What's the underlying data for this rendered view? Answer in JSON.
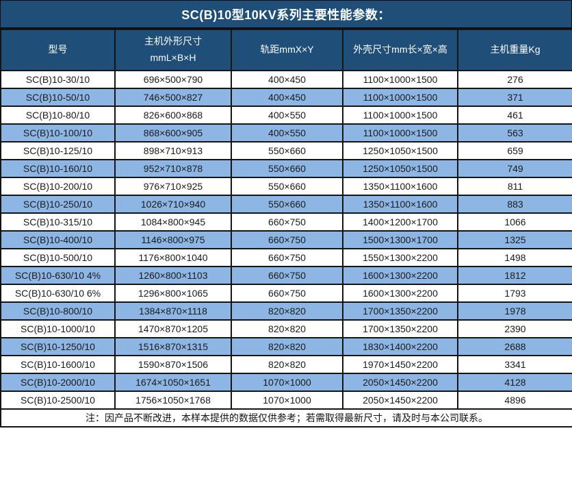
{
  "title": "SC(B)10型10KV系列主要性能参数：",
  "colors": {
    "header_bg": "#1F4E79",
    "stripe_bg": "#8EB6E4",
    "grid_line": "#141414",
    "header_text": "#ffffff",
    "body_text": "#1a1a1a"
  },
  "table": {
    "columns": [
      {
        "label": "型号"
      },
      {
        "label": "主机外形尺寸\nmmL×B×H"
      },
      {
        "label": "轨距mmX×Y"
      },
      {
        "label": "外壳尺寸mm长×宽×高"
      },
      {
        "label": "主机重量Kg"
      }
    ],
    "rows": [
      [
        "SC(B)10-30/10",
        "696×500×790",
        "400×450",
        "1100×1000×1500",
        "276"
      ],
      [
        "SC(B)10-50/10",
        "746×500×827",
        "400×450",
        "1100×1000×1500",
        "371"
      ],
      [
        "SC(B)10-80/10",
        "826×600×868",
        "400×550",
        "1100×1000×1500",
        "461"
      ],
      [
        "SC(B)10-100/10",
        "868×600×905",
        "400×550",
        "1100×1000×1500",
        "563"
      ],
      [
        "SC(B)10-125/10",
        "898×710×913",
        "550×660",
        "1250×1050×1500",
        "659"
      ],
      [
        "SC(B)10-160/10",
        "952×710×878",
        "550×660",
        "1250×1050×1500",
        "749"
      ],
      [
        "SC(B)10-200/10",
        "976×710×925",
        "550×660",
        "1350×1100×1600",
        "811"
      ],
      [
        "SC(B)10-250/10",
        "1026×710×940",
        "550×660",
        "1350×1100×1600",
        "883"
      ],
      [
        "SC(B)10-315/10",
        "1084×800×945",
        "660×750",
        "1400×1200×1700",
        "1066"
      ],
      [
        "SC(B)10-400/10",
        "1146×800×975",
        "660×750",
        "1500×1300×1700",
        "1325"
      ],
      [
        "SC(B)10-500/10",
        "1176×800×1040",
        "660×750",
        "1550×1300×2200",
        "1498"
      ],
      [
        "SC(B)10-630/10 4%",
        "1260×800×1103",
        "660×750",
        "1600×1300×2200",
        "1812"
      ],
      [
        "SC(B)10-630/10 6%",
        "1296×800×1065",
        "660×750",
        "1600×1300×2200",
        "1793"
      ],
      [
        "SC(B)10-800/10",
        "1384×870×1118",
        "820×820",
        "1700×1350×2200",
        "1978"
      ],
      [
        "SC(B)10-1000/10",
        "1470×870×1205",
        "820×820",
        "1700×1350×2200",
        "2390"
      ],
      [
        "SC(B)10-1250/10",
        "1516×870×1315",
        "820×820",
        "1830×1400×2200",
        "2688"
      ],
      [
        "SC(B)10-1600/10",
        "1590×870×1506",
        "820×820",
        "1970×1450×2200",
        "3341"
      ],
      [
        "SC(B)10-2000/10",
        "1674×1050×1651",
        "1070×1000",
        "2050×1450×2200",
        "4128"
      ],
      [
        "SC(B)10-2500/10",
        "1756×1050×1768",
        "1070×1000",
        "2050×1450×2200",
        "4896"
      ]
    ],
    "footer_note": "注：因产品不断改进，本样本提供的数据仅供参考；若需取得最新尺寸，请及时与本公司联系。"
  }
}
